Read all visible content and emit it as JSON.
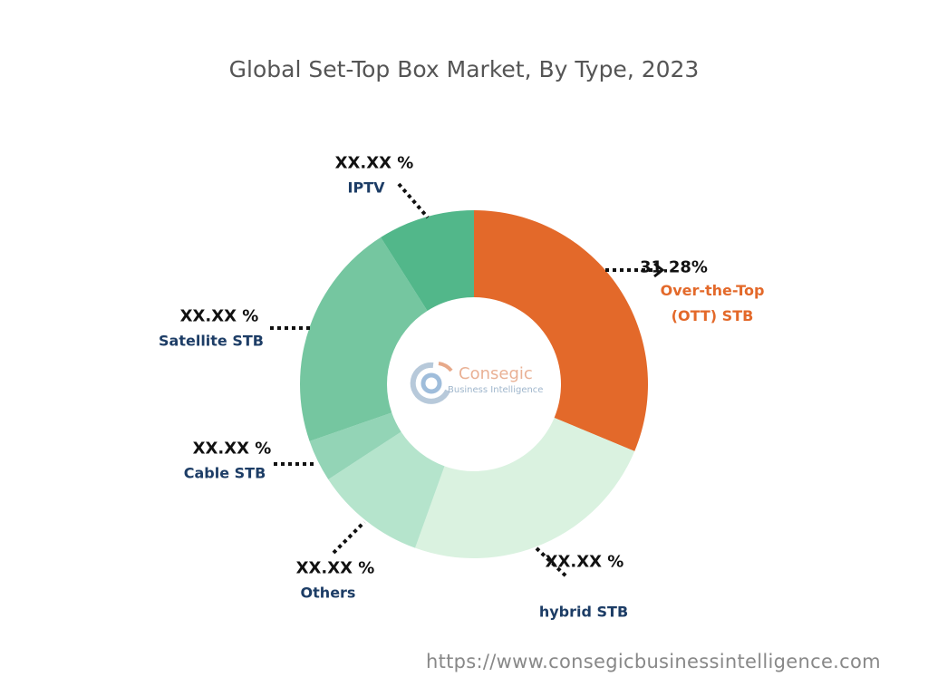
{
  "chart_data": {
    "type": "pie",
    "donut": true,
    "title": "Global Set-Top Box Market, By Type, 2023",
    "categories": [
      "Over-the-Top (OTT) STB",
      "hybrid STB",
      "Others",
      "Cable STB",
      "Satellite STB",
      "IPTV"
    ],
    "values": [
      31.28,
      24.2,
      10.3,
      3.9,
      21.3,
      9.0
    ],
    "value_labels": [
      "31.28%",
      "XX.XX %",
      "XX.XX %",
      "XX.XX %",
      "XX.XX %",
      "XX.XX %"
    ],
    "label_lines": [
      [
        "Over-the-Top",
        "(OTT) STB"
      ],
      [
        "hybrid STB"
      ],
      [
        "Others"
      ],
      [
        "Cable STB"
      ],
      [
        "Satellite STB"
      ],
      [
        "IPTV"
      ]
    ],
    "colors": [
      "#e3692a",
      "#daf2e0",
      "#b5e4cc",
      "#93d4b6",
      "#75c6a0",
      "#52b78a"
    ],
    "highlight_color": "#e3692a",
    "label_color": "#1d3d66"
  },
  "watermark": {
    "brand": "Consegic",
    "sub": "Business Intelligence"
  },
  "footer": {
    "url": "https://www.consegicbusinessintelligence.com"
  }
}
